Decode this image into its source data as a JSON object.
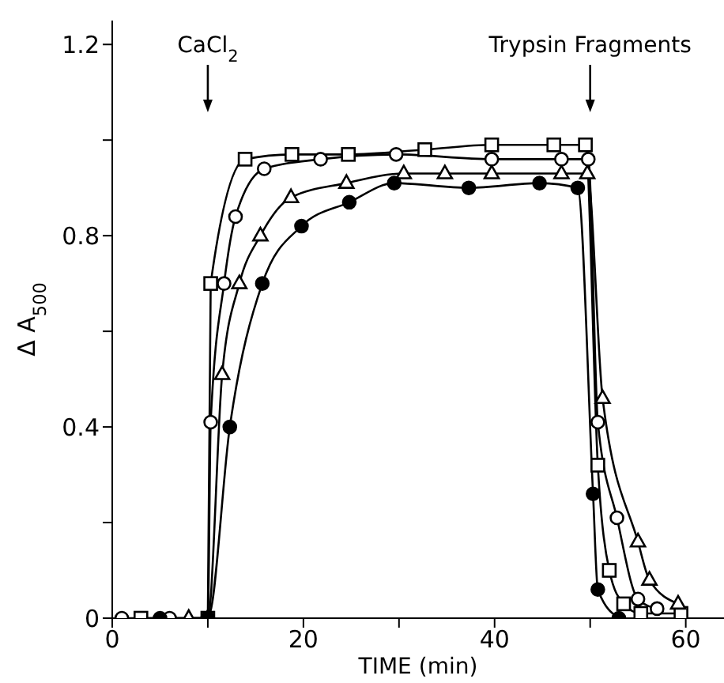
{
  "chart_data": {
    "type": "line",
    "xlabel": "TIME (min)",
    "ylabel": "Δ A$_{500}$",
    "xlim": [
      0,
      64
    ],
    "ylim": [
      0,
      1.25
    ],
    "xticks": [
      0,
      {
        "value": 10,
        "label": null
      },
      20,
      {
        "value": 30,
        "label": null
      },
      40,
      {
        "value": 50,
        "label": null
      },
      60
    ],
    "yticks": [
      0,
      {
        "value": 0.2,
        "label": null
      },
      0.4,
      {
        "value": 0.6,
        "label": null
      },
      0.8,
      {
        "value": 1.0,
        "label": null
      },
      1.2
    ],
    "line_style": "solid",
    "ref_lines": [
      {
        "axis": "x",
        "value": 10,
        "label": "CaCl$_{2}$"
      },
      {
        "axis": "x",
        "value": 50,
        "label": "Trypsin Fragments"
      }
    ],
    "series": [
      {
        "color": "#000000",
        "marker": "square",
        "x": [
          3,
          10,
          10.3,
          13.9,
          18.8,
          24.7,
          32.7,
          39.7,
          46.2,
          49.5,
          50.8,
          52,
          53.5,
          55.3,
          59.5
        ],
        "values": [
          0,
          0,
          0.7,
          0.96,
          0.97,
          0.97,
          0.98,
          0.99,
          0.99,
          0.99,
          0.32,
          0.1,
          0.03,
          0.01,
          0.01
        ]
      },
      {
        "color": "#000000",
        "marker": "triangle",
        "x": [
          8,
          10,
          11.5,
          13.3,
          15.5,
          18.7,
          24.5,
          30.5,
          34.8,
          39.7,
          47,
          49.7,
          51.3,
          55,
          56.2,
          59.2
        ],
        "values": [
          0,
          0,
          0.51,
          0.7,
          0.8,
          0.88,
          0.91,
          0.93,
          0.93,
          0.93,
          0.93,
          0.93,
          0.46,
          0.16,
          0.08,
          0.03
        ]
      },
      {
        "color": "#000000",
        "marker": "circle",
        "x": [
          1,
          6,
          10,
          10.3,
          11.7,
          12.9,
          15.9,
          21.8,
          29.7,
          39.7,
          47,
          49.8,
          50.8,
          52.8,
          55,
          57
        ],
        "values": [
          0,
          0,
          0,
          0.41,
          0.7,
          0.84,
          0.94,
          0.96,
          0.97,
          0.96,
          0.96,
          0.96,
          0.41,
          0.21,
          0.04,
          0.02
        ]
      },
      {
        "color": "#000000",
        "marker": "circle",
        "x": [
          5,
          10,
          12.3,
          15.7,
          19.8,
          24.8,
          29.5,
          37.3,
          44.7,
          48.7,
          50.3,
          50.8,
          53
        ],
        "values": [
          0,
          0,
          0.4,
          0.7,
          0.82,
          0.87,
          0.91,
          0.9,
          0.91,
          0.9,
          0.26,
          0.06,
          0
        ]
      }
    ]
  }
}
